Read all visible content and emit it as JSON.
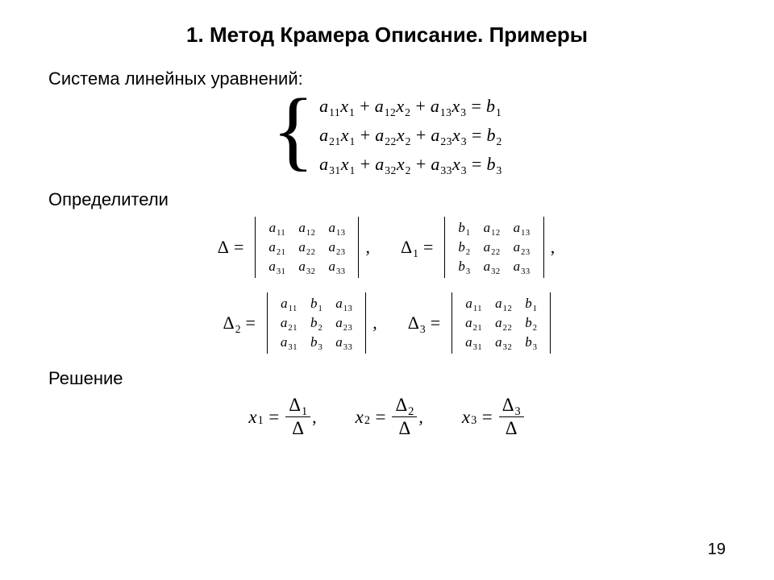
{
  "colors": {
    "background": "#ffffff",
    "text": "#000000"
  },
  "title": "1. Метод Крамера Описание. Примеры",
  "labels": {
    "system": "Система линейных уравнений:",
    "determinants": "Определители",
    "solution": "Решение"
  },
  "page_number": "19",
  "system": {
    "coef_symbol": "a",
    "var_symbol": "x",
    "rhs_symbol": "b",
    "rows": [
      {
        "coefs": [
          "11",
          "12",
          "13"
        ],
        "vars": [
          "1",
          "2",
          "3"
        ],
        "rhs": "1"
      },
      {
        "coefs": [
          "21",
          "22",
          "23"
        ],
        "vars": [
          "1",
          "2",
          "3"
        ],
        "rhs": "2"
      },
      {
        "coefs": [
          "31",
          "32",
          "33"
        ],
        "vars": [
          "1",
          "2",
          "3"
        ],
        "rhs": "3"
      }
    ]
  },
  "determinants": {
    "row1": [
      {
        "name": "Δ",
        "sub": "",
        "cells": [
          [
            "a",
            "11",
            "a",
            "12",
            "a",
            "13"
          ],
          [
            "a",
            "21",
            "a",
            "22",
            "a",
            "23"
          ],
          [
            "a",
            "31",
            "a",
            "32",
            "a",
            "33"
          ]
        ]
      },
      {
        "name": "Δ",
        "sub": "1",
        "cells": [
          [
            "b",
            "1",
            "a",
            "12",
            "a",
            "13"
          ],
          [
            "b",
            "2",
            "a",
            "22",
            "a",
            "23"
          ],
          [
            "b",
            "3",
            "a",
            "32",
            "a",
            "33"
          ]
        ]
      }
    ],
    "row2": [
      {
        "name": "Δ",
        "sub": "2",
        "cells": [
          [
            "a",
            "11",
            "b",
            "1",
            "a",
            "13"
          ],
          [
            "a",
            "21",
            "b",
            "2",
            "a",
            "23"
          ],
          [
            "a",
            "31",
            "b",
            "3",
            "a",
            "33"
          ]
        ]
      },
      {
        "name": "Δ",
        "sub": "3",
        "cells": [
          [
            "a",
            "11",
            "a",
            "12",
            "b",
            "1"
          ],
          [
            "a",
            "21",
            "a",
            "22",
            "b",
            "2"
          ],
          [
            "a",
            "31",
            "a",
            "32",
            "b",
            "3"
          ]
        ]
      }
    ]
  },
  "solution": {
    "var_symbol": "x",
    "items": [
      {
        "var_sub": "1",
        "num": "Δ",
        "num_sub": "1",
        "den": "Δ"
      },
      {
        "var_sub": "2",
        "num": "Δ",
        "num_sub": "2",
        "den": "Δ"
      },
      {
        "var_sub": "3",
        "num": "Δ",
        "num_sub": "3",
        "den": "Δ"
      }
    ]
  }
}
